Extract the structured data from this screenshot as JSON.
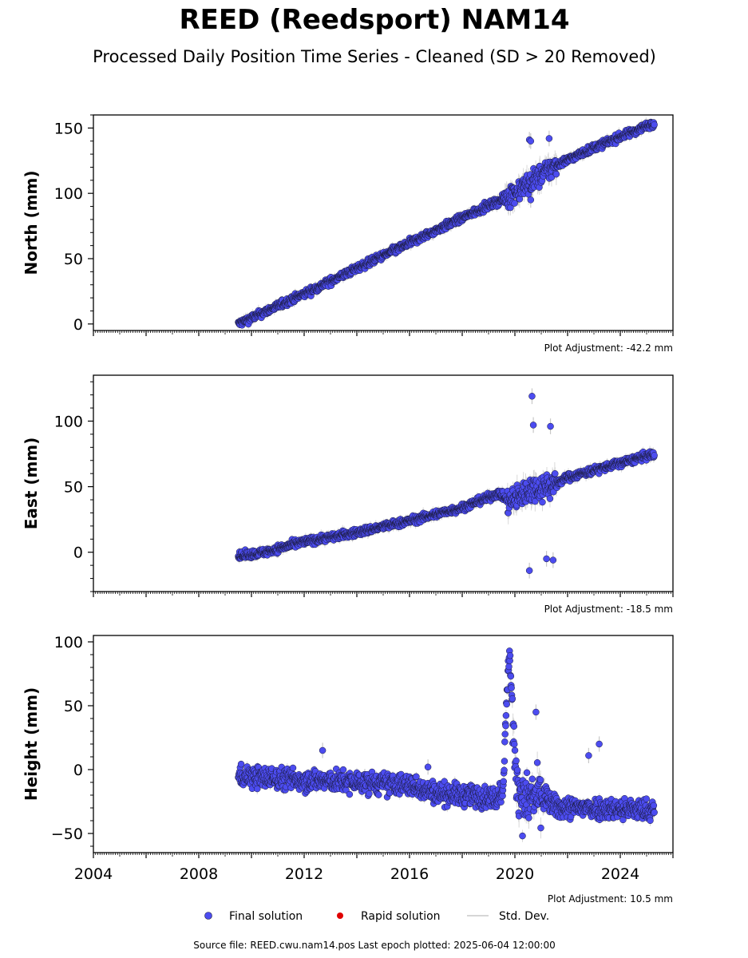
{
  "figure": {
    "title": "REED (Reedsport) NAM14",
    "subtitle": "Processed Daily Position Time Series - Cleaned (SD > 20 Removed)",
    "footer": "Source file: REED.cwu.nam14.pos  Last epoch plotted: 2025-06-04 12:00:00"
  },
  "legend": {
    "final": "Final solution",
    "rapid": "Rapid solution",
    "sd": "Std. Dev."
  },
  "colors": {
    "final_fill": "#4c4cf0",
    "final_edge": "#1a1a3a",
    "rapid": "#e00000",
    "sd": "#c8c8c8"
  },
  "chart_data": [
    {
      "type": "scatter",
      "component": "north",
      "ylabel": "North (mm)",
      "yticks": [
        0,
        50,
        100,
        150
      ],
      "ylim": [
        -5,
        160
      ],
      "xlim": [
        2004,
        2026
      ],
      "adjustment": "Plot Adjustment: -42.2 mm",
      "series": [
        {
          "kind": "trend",
          "x": [
            2009.5,
            2012,
            2016,
            2018.5,
            2019.6,
            2020.5,
            2021.5,
            2023,
            2025.3
          ],
          "y": [
            0,
            23,
            62,
            86,
            96,
            107,
            121,
            135,
            154
          ],
          "noise": 2.0
        },
        {
          "kind": "noise",
          "x": [
            2019.6,
            2021.6
          ],
          "noise": 6.0
        },
        {
          "kind": "outliers",
          "x": [
            2020.55,
            2020.6,
            2021.3,
            2020.6
          ],
          "y": [
            141,
            140,
            142,
            95
          ]
        }
      ]
    },
    {
      "type": "scatter",
      "component": "east",
      "ylabel": "East (mm)",
      "yticks": [
        0,
        50,
        100
      ],
      "ylim": [
        -30,
        135
      ],
      "xlim": [
        2004,
        2026
      ],
      "adjustment": "Plot Adjustment: -18.5 mm",
      "series": [
        {
          "kind": "trend",
          "x": [
            2009.5,
            2010.5,
            2012,
            2014,
            2016,
            2018,
            2019.4,
            2019.8,
            2020.6,
            2021.5,
            2022,
            2024,
            2025.3
          ],
          "y": [
            -3,
            0,
            8,
            15,
            24,
            34,
            45,
            38,
            48,
            52,
            57,
            68,
            75
          ],
          "noise": 2.0
        },
        {
          "kind": "noise",
          "x": [
            2019.7,
            2021.6
          ],
          "noise": 7.0
        },
        {
          "kind": "outliers",
          "x": [
            2020.65,
            2020.7,
            2021.35,
            2020.55,
            2021.2,
            2021.45
          ],
          "y": [
            119,
            97,
            96,
            -14,
            -5,
            -6
          ]
        }
      ]
    },
    {
      "type": "scatter",
      "component": "height",
      "ylabel": "Height (mm)",
      "yticks": [
        -50,
        0,
        50,
        100
      ],
      "ylim": [
        -65,
        105
      ],
      "xlim": [
        2004,
        2026
      ],
      "xticks": [
        2004,
        2008,
        2012,
        2016,
        2020,
        2024
      ],
      "adjustment": "Plot Adjustment: 10.5 mm",
      "series": [
        {
          "kind": "trend",
          "x": [
            2009.5,
            2012,
            2016,
            2017,
            2018,
            2019.3,
            2019.55,
            2019.7,
            2019.8,
            2020.0,
            2020.3,
            2021.0,
            2021.6,
            2023,
            2025.3
          ],
          "y": [
            -5,
            -8,
            -12,
            -18,
            -20,
            -22,
            -15,
            60,
            95,
            0,
            -25,
            -20,
            -30,
            -30,
            -32
          ],
          "noise": 6.0
        },
        {
          "kind": "noise",
          "x": [
            2019.9,
            2021.2
          ],
          "noise": 14.0
        },
        {
          "kind": "outliers",
          "x": [
            2012.7,
            2020.8,
            2022.8,
            2023.2,
            2016.7
          ],
          "y": [
            15,
            45,
            11,
            20,
            2
          ]
        }
      ]
    }
  ]
}
